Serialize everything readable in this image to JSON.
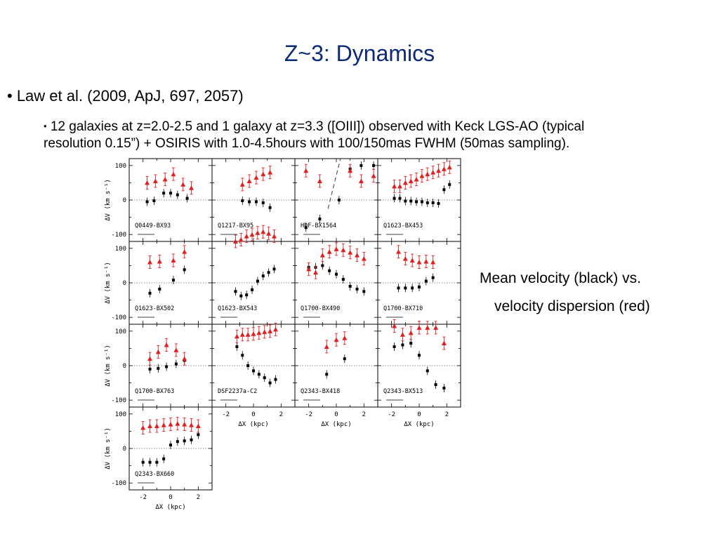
{
  "slide": {
    "title": "Z~3: Dynamics",
    "bullet1": "• Law et al. (2009, ApJ, 697, 2057)",
    "bullet2_marker": "•",
    "bullet2_line1": "12 galaxies at z=2.0-2.5 and 1 galaxy at z=3.3 ([OIII]) observed with Keck LGS-AO (typical",
    "bullet2_line2": "resolution 0.15”) + OSIRIS with 1.0-4.5hours with 100/150mas FWHM (50mas sampling).",
    "caption_line1": "Mean velocity (black) vs.",
    "caption_line2": "velocity dispersion (red)"
  },
  "colors": {
    "title": "#0b2a78",
    "mean_velocity": "#000000",
    "dispersion": "#e02020"
  },
  "chart_data": {
    "type": "scatter",
    "ylabel": "ΔV (km s⁻¹)",
    "xlabel": "ΔX (kpc)",
    "ylim": [
      -120,
      120
    ],
    "xlim": [
      -3,
      3
    ],
    "yticks": [
      100,
      0,
      -100
    ],
    "xticks": [
      -2,
      0,
      2
    ],
    "series_names": [
      "Mean velocity",
      "Velocity dispersion"
    ],
    "panels": [
      {
        "name": "Q0449-BX93",
        "mean": [
          [
            -1.7,
            -5
          ],
          [
            -1.2,
            -2
          ],
          [
            -0.5,
            20
          ],
          [
            0,
            20
          ],
          [
            0.5,
            15
          ],
          [
            1.2,
            5
          ]
        ],
        "sigma": [
          [
            -1.7,
            50
          ],
          [
            -1.1,
            55
          ],
          [
            -0.4,
            60
          ],
          [
            0.2,
            75
          ],
          [
            0.9,
            45
          ],
          [
            1.5,
            35
          ]
        ]
      },
      {
        "name": "Q1217-BX95",
        "mean": [
          [
            -0.8,
            -2
          ],
          [
            -0.3,
            -5
          ],
          [
            0.2,
            -5
          ],
          [
            0.7,
            -8
          ],
          [
            1.2,
            -22
          ]
        ],
        "sigma": [
          [
            -0.8,
            45
          ],
          [
            -0.3,
            55
          ],
          [
            0.2,
            65
          ],
          [
            0.7,
            75
          ],
          [
            1.2,
            80
          ]
        ]
      },
      {
        "name": "HDF-BX1564",
        "mean": [
          [
            -2.2,
            -80
          ],
          [
            -1.2,
            -55
          ],
          [
            0.2,
            0
          ],
          [
            1,
            90
          ],
          [
            1.8,
            100
          ],
          [
            2.7,
            100
          ]
        ],
        "sigma": [
          [
            -2.2,
            85
          ],
          [
            -1.2,
            55
          ],
          [
            1,
            85
          ],
          [
            1.8,
            55
          ],
          [
            2.7,
            70
          ]
        ]
      },
      {
        "name": "Q1623-BX453",
        "mean": [
          [
            -1.8,
            5
          ],
          [
            -1.4,
            5
          ],
          [
            -1,
            -3
          ],
          [
            -0.6,
            -3
          ],
          [
            -0.2,
            -5
          ],
          [
            0.2,
            -5
          ],
          [
            0.6,
            -8
          ],
          [
            1,
            -8
          ],
          [
            1.4,
            -10
          ],
          [
            1.8,
            30
          ],
          [
            2.2,
            45
          ]
        ],
        "sigma": [
          [
            -1.8,
            40
          ],
          [
            -1.4,
            40
          ],
          [
            -1,
            50
          ],
          [
            -0.6,
            55
          ],
          [
            -0.2,
            60
          ],
          [
            0.2,
            70
          ],
          [
            0.6,
            75
          ],
          [
            1,
            80
          ],
          [
            1.4,
            85
          ],
          [
            1.8,
            90
          ],
          [
            2.2,
            95
          ]
        ]
      },
      {
        "name": "Q1623-BX502",
        "mean": [
          [
            -1.5,
            -30
          ],
          [
            -0.8,
            -18
          ],
          [
            0.2,
            8
          ],
          [
            1,
            38
          ]
        ],
        "sigma": [
          [
            -1.5,
            60
          ],
          [
            -0.8,
            62
          ],
          [
            0.2,
            65
          ],
          [
            1,
            90
          ]
        ]
      },
      {
        "name": "Q1623-BX543",
        "mean": [
          [
            -1.3,
            -25
          ],
          [
            -0.9,
            -38
          ],
          [
            -0.5,
            -35
          ],
          [
            -0.1,
            -20
          ],
          [
            0.3,
            5
          ],
          [
            0.7,
            20
          ],
          [
            1.1,
            30
          ],
          [
            1.5,
            40
          ]
        ],
        "sigma": [
          [
            -1.3,
            120
          ],
          [
            -0.9,
            125
          ],
          [
            -0.5,
            135
          ],
          [
            -0.1,
            140
          ],
          [
            0.3,
            145
          ],
          [
            0.7,
            148
          ],
          [
            1.1,
            143
          ],
          [
            1.5,
            135
          ]
        ]
      },
      {
        "name": "Q1700-BX490",
        "mean": [
          [
            -2,
            45
          ],
          [
            -1.5,
            45
          ],
          [
            -1,
            50
          ],
          [
            -0.5,
            35
          ],
          [
            0,
            25
          ],
          [
            0.5,
            10
          ],
          [
            1,
            -10
          ],
          [
            1.5,
            -18
          ],
          [
            2,
            -25
          ]
        ],
        "sigma": [
          [
            -2,
            40
          ],
          [
            -1.5,
            30
          ],
          [
            -1,
            80
          ],
          [
            -0.5,
            90
          ],
          [
            0,
            98
          ],
          [
            0.5,
            95
          ],
          [
            1,
            88
          ],
          [
            1.5,
            80
          ],
          [
            2,
            70
          ]
        ]
      },
      {
        "name": "Q1700-BX710",
        "mean": [
          [
            -1.5,
            -15
          ],
          [
            -1,
            -15
          ],
          [
            -0.5,
            -15
          ],
          [
            0,
            -12
          ],
          [
            0.5,
            5
          ],
          [
            1,
            15
          ]
        ],
        "sigma": [
          [
            -1.5,
            90
          ],
          [
            -1,
            70
          ],
          [
            -0.5,
            65
          ],
          [
            0,
            60
          ],
          [
            0.5,
            62
          ],
          [
            1,
            60
          ]
        ]
      },
      {
        "name": "Q1700-BX763",
        "mean": [
          [
            -1.5,
            -10
          ],
          [
            -0.9,
            -8
          ],
          [
            -0.3,
            -3
          ],
          [
            0.4,
            5
          ],
          [
            1,
            15
          ]
        ],
        "sigma": [
          [
            -1.5,
            20
          ],
          [
            -0.9,
            40
          ],
          [
            -0.3,
            60
          ],
          [
            0.4,
            45
          ],
          [
            1,
            20
          ]
        ]
      },
      {
        "name": "DSF2237a-C2",
        "mean": [
          [
            -1.2,
            55
          ],
          [
            -0.8,
            30
          ],
          [
            -0.4,
            0
          ],
          [
            0,
            -15
          ],
          [
            0.4,
            -25
          ],
          [
            0.8,
            -35
          ],
          [
            1.2,
            -50
          ],
          [
            1.6,
            -40
          ]
        ],
        "sigma": [
          [
            -1.2,
            85
          ],
          [
            -0.8,
            90
          ],
          [
            -0.4,
            90
          ],
          [
            0,
            92
          ],
          [
            0.4,
            95
          ],
          [
            0.8,
            98
          ],
          [
            1.2,
            100
          ],
          [
            1.6,
            105
          ]
        ]
      },
      {
        "name": "Q2343-BX418",
        "mean": [
          [
            -0.7,
            -25
          ],
          [
            0.6,
            20
          ]
        ],
        "sigma": [
          [
            -0.7,
            55
          ],
          [
            0,
            75
          ],
          [
            0.6,
            80
          ]
        ]
      },
      {
        "name": "Q2343-BX513",
        "mean": [
          [
            -1.8,
            55
          ],
          [
            -1.2,
            60
          ],
          [
            -0.6,
            65
          ],
          [
            0,
            30
          ],
          [
            0.6,
            -15
          ],
          [
            1.2,
            -55
          ],
          [
            1.8,
            -65
          ]
        ],
        "sigma": [
          [
            -1.8,
            115
          ],
          [
            -1.2,
            90
          ],
          [
            -0.6,
            95
          ],
          [
            0,
            110
          ],
          [
            0.6,
            110
          ],
          [
            1.2,
            110
          ],
          [
            1.8,
            65
          ]
        ]
      },
      {
        "name": "Q2343-BX660",
        "mean": [
          [
            -2,
            -40
          ],
          [
            -1.5,
            -40
          ],
          [
            -1,
            -40
          ],
          [
            -0.5,
            -30
          ],
          [
            0,
            10
          ],
          [
            0.5,
            20
          ],
          [
            1,
            22
          ],
          [
            1.5,
            25
          ],
          [
            2,
            40
          ]
        ],
        "sigma": [
          [
            -2,
            60
          ],
          [
            -1.5,
            65
          ],
          [
            -1,
            65
          ],
          [
            -0.5,
            68
          ],
          [
            0,
            70
          ],
          [
            0.5,
            72
          ],
          [
            1,
            70
          ],
          [
            1.5,
            68
          ],
          [
            2,
            65
          ]
        ]
      }
    ]
  }
}
